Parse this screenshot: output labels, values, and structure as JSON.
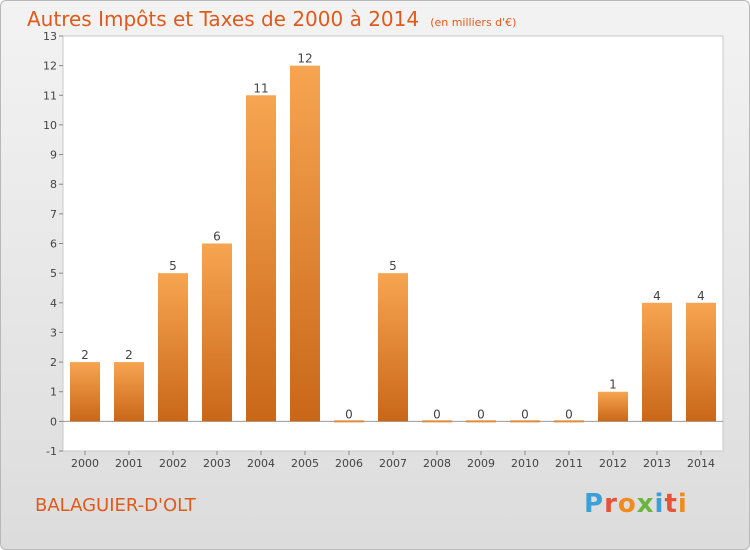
{
  "title": "Autres Impôts et Taxes de 2000 à 2014",
  "unit": "(en milliers d'€)",
  "commune": "BALAGUIER-D'OLT",
  "logo": {
    "text": "Proxiti",
    "colors": [
      "#3aa0d8",
      "#e8523a",
      "#f08c1e",
      "#6ab63c",
      "#3aa0d8",
      "#e8523a",
      "#f08c1e"
    ]
  },
  "chart_data": {
    "type": "bar",
    "categories": [
      "2000",
      "2001",
      "2002",
      "2003",
      "2004",
      "2005",
      "2006",
      "2007",
      "2008",
      "2009",
      "2010",
      "2011",
      "2012",
      "2013",
      "2014"
    ],
    "values": [
      2,
      2,
      5,
      6,
      11,
      12,
      0,
      5,
      0,
      0,
      0,
      0,
      1,
      4,
      4
    ],
    "data_labels": [
      "2",
      "2",
      "5",
      "6",
      "11",
      "12",
      "0",
      "5",
      "0",
      "0",
      "0",
      "0",
      "1",
      "4",
      "4"
    ],
    "yticks": [
      "-1",
      "0",
      "1",
      "2",
      "3",
      "4",
      "5",
      "6",
      "7",
      "8",
      "9",
      "10",
      "11",
      "12",
      "13"
    ],
    "ylim": [
      -1,
      13
    ],
    "bar_color_top": "#f7a552",
    "bar_color_bottom": "#c96718",
    "grid": false
  }
}
